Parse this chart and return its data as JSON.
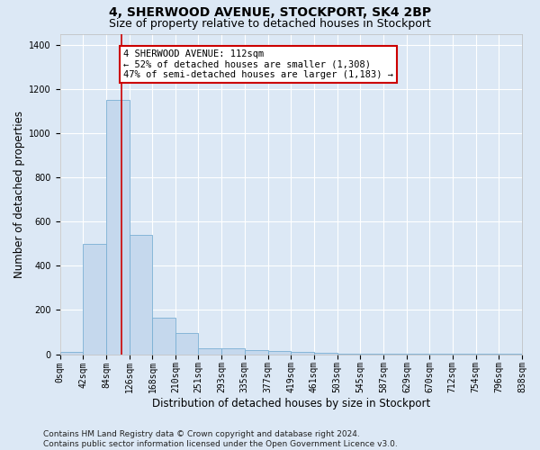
{
  "title": "4, SHERWOOD AVENUE, STOCKPORT, SK4 2BP",
  "subtitle": "Size of property relative to detached houses in Stockport",
  "xlabel": "Distribution of detached houses by size in Stockport",
  "ylabel": "Number of detached properties",
  "bin_edges": [
    0,
    42,
    84,
    126,
    168,
    210,
    251,
    293,
    335,
    377,
    419,
    461,
    503,
    545,
    587,
    629,
    670,
    712,
    754,
    796,
    838
  ],
  "bar_heights": [
    10,
    500,
    1150,
    540,
    165,
    95,
    28,
    25,
    20,
    15,
    10,
    5,
    3,
    2,
    1,
    1,
    1,
    1,
    1,
    1
  ],
  "bar_color": "#c5d8ed",
  "bar_edge_color": "#7aafd4",
  "property_size": 112,
  "property_line_color": "#cc0000",
  "annotation_text": "4 SHERWOOD AVENUE: 112sqm\n← 52% of detached houses are smaller (1,308)\n47% of semi-detached houses are larger (1,183) →",
  "annotation_box_color": "#ffffff",
  "annotation_box_edge_color": "#cc0000",
  "ylim": [
    0,
    1450
  ],
  "yticks": [
    0,
    200,
    400,
    600,
    800,
    1000,
    1200,
    1400
  ],
  "tick_labels": [
    "0sqm",
    "42sqm",
    "84sqm",
    "126sqm",
    "168sqm",
    "210sqm",
    "251sqm",
    "293sqm",
    "335sqm",
    "377sqm",
    "419sqm",
    "461sqm",
    "503sqm",
    "545sqm",
    "587sqm",
    "629sqm",
    "670sqm",
    "712sqm",
    "754sqm",
    "796sqm",
    "838sqm"
  ],
  "footer_text": "Contains HM Land Registry data © Crown copyright and database right 2024.\nContains public sector information licensed under the Open Government Licence v3.0.",
  "bg_color": "#dce8f5",
  "plot_bg_color": "#dce8f5",
  "grid_color": "#ffffff",
  "title_fontsize": 10,
  "subtitle_fontsize": 9,
  "axis_label_fontsize": 8.5,
  "tick_fontsize": 7,
  "footer_fontsize": 6.5,
  "annotation_fontsize": 7.5
}
